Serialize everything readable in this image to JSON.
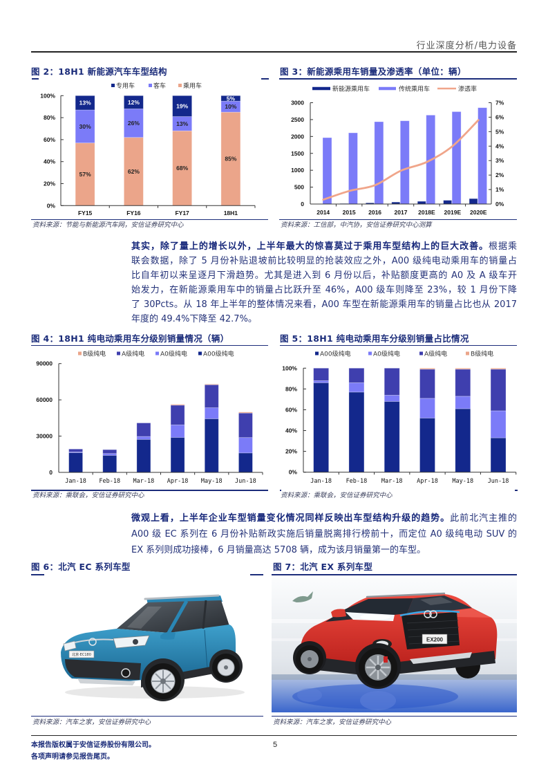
{
  "header": {
    "section_title": "行业深度分析/电力设备"
  },
  "fig2": {
    "title": "图 2：18H1 新能源汽车车型结构",
    "source": "资料来源：节能与新能源汽车网，安信证券研究中心"
  },
  "fig3": {
    "title": "图 3：新能源乘用车销量及渗透率（单位：辆）",
    "source": "资料来源：工信部，中汽协，安信证券研究中心测算"
  },
  "fig4": {
    "title": "图 4：18H1 纯电动乘用车分级别销量情况（辆）",
    "source": "资料来源：乘联会，安信证券研究中心"
  },
  "fig5": {
    "title": "图 5：18H1 纯电动乘用车分级别销量占比情况",
    "source": "资料来源：乘联会，安信证券研究中心"
  },
  "fig6": {
    "title": "图 6：北汽 EC 系列车型",
    "source": "资料来源：汽车之家，安信证券研究中心",
    "badge": "北京·EC180"
  },
  "fig7": {
    "title": "图 7：北汽 EX 系列车型",
    "source": "资料来源：汽车之家，安信证券研究中心",
    "badge": "EX200"
  },
  "paragraph1": {
    "lines": [
      {
        "bold": "其实，除了量上的增长以外，上半年最大的惊喜莫过于乘用车型结构上的巨大改善。",
        "text": "根据乘"
      },
      {
        "text": "联会数据，除了 5 月份补贴退坡前比较明显的抢装效应之外，A00 级纯电动乘用车的销量占"
      },
      {
        "text": "比自年初以来呈逐月下滑趋势。尤其是进入到 6 月份以后，补贴额度更高的 A0 及 A 级车开"
      },
      {
        "text": "始发力，在新能源乘用车中的销量占比跃升至 46%，A00 级车则降至 23%，较 1 月份下降"
      },
      {
        "text": "了 30Pcts。从 18 年上半年的整体情况来看，A00 车型在新能源乘用车的销量占比也从 2017"
      },
      {
        "text": "年度的 49.4%下降至 42.7%。"
      }
    ]
  },
  "paragraph2": {
    "lines": [
      {
        "bold": "微观上看，上半年企业车型销量变化情况同样反映出车型结构升级的趋势。",
        "text": "此前北汽主推的"
      },
      {
        "text": "A00 级 EC 系列在 6 月份补贴新政实施后销量脱离排行榜前十，而定位 A0 级纯电动 SUV 的"
      },
      {
        "text": "EX 系列则成功接棒，6 月销量高达 5708 辆，成为该月销量第一的车型。"
      }
    ]
  },
  "footer": {
    "copyright": "本报告版权属于安信证券股份有限公司。",
    "disclaimer": "各项声明请参见报告尾页。",
    "page_number": "5"
  },
  "colors": {
    "title_navy": "#1b2c7a",
    "body_text": "#233178",
    "navy_series": "#13288c",
    "periwinkle_series": "#7b7bf8",
    "indigo_series": "#3f3fae",
    "salmon_series": "#eba58a"
  },
  "chart_data": [
    {
      "id": "fig2",
      "type": "bar",
      "stacked": true,
      "title": "图 2：18H1 新能源汽车车型结构",
      "categories": [
        "FY15",
        "FY16",
        "FY17",
        "18H1"
      ],
      "series": [
        {
          "name": "乘用车",
          "values": [
            57,
            62,
            68,
            85
          ],
          "color": "#eba58a",
          "label_color": "#222222"
        },
        {
          "name": "客车",
          "values": [
            30,
            26,
            13,
            10
          ],
          "color": "#7b7bf8",
          "label_color": "#222222"
        },
        {
          "name": "专用车",
          "values": [
            13,
            12,
            19,
            5
          ],
          "color": "#13288c",
          "label_color": "#ffffff"
        }
      ],
      "legend_order": [
        "专用车",
        "客车",
        "乘用车"
      ],
      "legend_position": "top",
      "data_labels": true,
      "label_suffix": "%",
      "ylim": [
        0,
        100
      ],
      "yticks": [
        "0%",
        "20%",
        "40%",
        "60%",
        "80%",
        "100%"
      ],
      "ytick_values": [
        0,
        20,
        40,
        60,
        80,
        100
      ],
      "xlabel": "",
      "ylabel": "",
      "grid": false
    },
    {
      "id": "fig3",
      "type": "bar+line",
      "title": "图 3：新能源乘用车销量及渗透率（单位：辆）",
      "categories": [
        "2014",
        "2015",
        "2016",
        "2017",
        "2018E",
        "2019E",
        "2020E"
      ],
      "series": [
        {
          "name": "新能源乘用车",
          "type": "bar",
          "axis": "left",
          "values": [
            5,
            15,
            34,
            58,
            80,
            110,
            160
          ],
          "color": "#13288c"
        },
        {
          "name": "传统乘用车",
          "type": "bar",
          "axis": "left",
          "values": [
            1965,
            2108,
            2437,
            2464,
            2633,
            2735,
            2852
          ],
          "color": "#7b7bf8"
        },
        {
          "name": "渗透率",
          "type": "line",
          "axis": "right",
          "values": [
            0.3,
            0.9,
            1.3,
            2.3,
            2.9,
            4.0,
            5.8
          ],
          "color": "#f0a58a",
          "unit": "%"
        }
      ],
      "legend_position": "top",
      "ylim_left": [
        0,
        3000
      ],
      "yticks_left": [
        "0",
        "500",
        "1000",
        "1500",
        "2000",
        "2500",
        "3000"
      ],
      "ytick_values_left": [
        0,
        500,
        1000,
        1500,
        2000,
        2500,
        3000
      ],
      "ylim_right": [
        0,
        7
      ],
      "yticks_right": [
        "0%",
        "1%",
        "2%",
        "3%",
        "4%",
        "5%",
        "6%",
        "7%"
      ],
      "ytick_values_right": [
        0,
        1,
        2,
        3,
        4,
        5,
        6,
        7
      ],
      "xlabel": "",
      "ylabel": "",
      "grid": false
    },
    {
      "id": "fig4",
      "type": "bar",
      "stacked": true,
      "title": "图 4：18H1 纯电动乘用车分级别销量情况（辆）",
      "categories": [
        "Jan-18",
        "Feb-18",
        "Mar-18",
        "Apr-18",
        "May-18",
        "Jun-18"
      ],
      "series": [
        {
          "name": "A00级纯电",
          "values": [
            16300,
            14100,
            27300,
            28900,
            44400,
            16100
          ],
          "color": "#13288c"
        },
        {
          "name": "A0级纯电",
          "values": [
            600,
            1500,
            2400,
            10400,
            9100,
            12700
          ],
          "color": "#7b7bf8"
        },
        {
          "name": "A级纯电",
          "values": [
            2400,
            3200,
            11200,
            16300,
            19000,
            20300
          ],
          "color": "#3f3fae"
        },
        {
          "name": "B级纯电",
          "values": [
            0,
            0,
            0,
            700,
            550,
            800
          ],
          "color": "#eba58a"
        }
      ],
      "legend_order": [
        "B级纯电",
        "A级纯电",
        "A0级纯电",
        "A00级纯电"
      ],
      "legend_position": "top",
      "data_labels": false,
      "ylim": [
        0,
        90000
      ],
      "yticks": [
        "0",
        "30000",
        "60000",
        "90000"
      ],
      "ytick_values": [
        0,
        30000,
        60000,
        90000
      ],
      "xlabel": "",
      "ylabel": "",
      "grid": false
    },
    {
      "id": "fig5",
      "type": "bar",
      "stacked": true,
      "title": "图 5：18H1 纯电动乘用车分级别销量占比情况",
      "categories": [
        "Jan-18",
        "Feb-18",
        "Mar-18",
        "Apr-18",
        "May-18",
        "Jun-18"
      ],
      "series": [
        {
          "name": "A00级纯电",
          "values": [
            86,
            77,
            68,
            52,
            61,
            33
          ],
          "color": "#13288c"
        },
        {
          "name": "A0级纯电",
          "values": [
            2,
            9,
            6,
            19,
            12,
            26
          ],
          "color": "#7b7bf8"
        },
        {
          "name": "A级纯电",
          "values": [
            12,
            14,
            26,
            28,
            26,
            40
          ],
          "color": "#3f3fae"
        },
        {
          "name": "B级纯电",
          "values": [
            0,
            0,
            0,
            1,
            1,
            1
          ],
          "color": "#eba58a"
        }
      ],
      "legend_order": [
        "A00级纯电",
        "A0级纯电",
        "A级纯电",
        "B级纯电"
      ],
      "legend_position": "top",
      "data_labels": false,
      "ylim": [
        0,
        100
      ],
      "yticks": [
        "0%",
        "20%",
        "40%",
        "60%",
        "80%",
        "100%"
      ],
      "ytick_values": [
        0,
        20,
        40,
        60,
        80,
        100
      ],
      "xlabel": "",
      "ylabel": "",
      "grid": false
    }
  ]
}
